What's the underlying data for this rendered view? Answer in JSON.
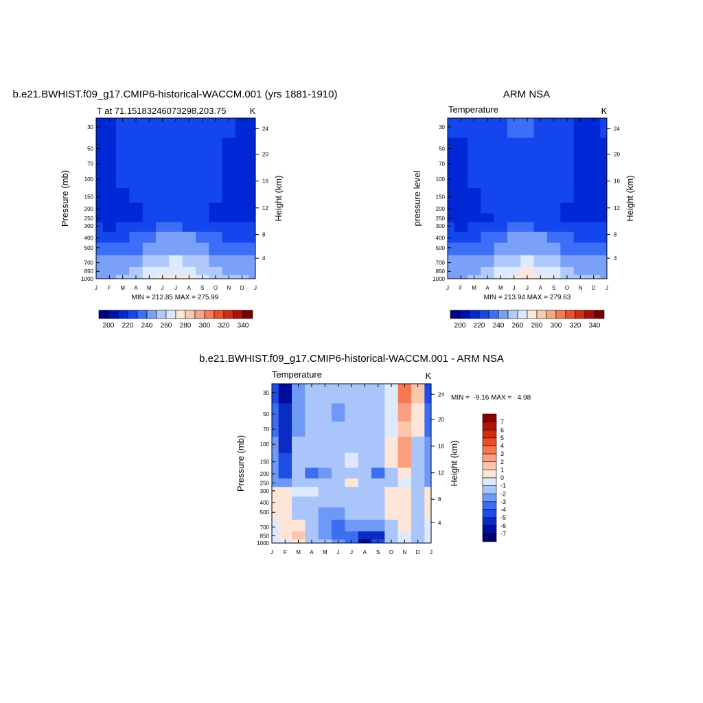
{
  "panels": [
    {
      "title": "b.e21.BWHIST.f09_g17.CMIP6-historical-WACCM.001 (yrs 1881-1910)",
      "left_label": "T at 71.15183246073298,203.75",
      "unit": "K",
      "ylabel": "Pressure (mb)",
      "y2label": "Height (km)",
      "stats": "MIN = 212.85 MAX = 275.99"
    },
    {
      "title": "ARM NSA",
      "left_label": "Temperature",
      "unit": "K",
      "ylabel": "pressure level",
      "y2label": "Height (km)",
      "stats": "MIN = 213.94 MAX = 279.63"
    },
    {
      "title": "b.e21.BWHIST.f09_g17.CMIP6-historical-WACCM.001 - ARM NSA",
      "left_label": "Temperature",
      "unit": "K",
      "ylabel": "Pressure (mb)",
      "y2label": "Height (km)",
      "stats": "MIN =  -9.16 MAX =   4.98"
    }
  ],
  "months": [
    "J",
    "F",
    "M",
    "A",
    "M",
    "J",
    "J",
    "A",
    "S",
    "O",
    "N",
    "D",
    "J"
  ],
  "pressure_ticks": [
    "30",
    "50",
    "70",
    "100",
    "150",
    "200",
    "250",
    "300",
    "400",
    "500",
    "700",
    "850",
    "1000"
  ],
  "height_ticks": [
    "24",
    "20",
    "16",
    "12",
    "8",
    "4"
  ],
  "temp_colorbar": {
    "labels": [
      "200",
      "220",
      "240",
      "260",
      "280",
      "300",
      "320",
      "340"
    ],
    "colors": [
      "#00008a",
      "#0010b0",
      "#0028d6",
      "#1446ee",
      "#3c6ef7",
      "#7aa0f9",
      "#b2cafb",
      "#dde9fd",
      "#fce8da",
      "#fbc9b0",
      "#f8a585",
      "#f47b58",
      "#e8502c",
      "#d22d12",
      "#a8100a",
      "#7a0000"
    ]
  },
  "diff_colorbar": {
    "labels": [
      "7",
      "6",
      "5",
      "4",
      "3",
      "2",
      "1",
      "0",
      "-1",
      "-2",
      "-3",
      "-4",
      "-5",
      "-6",
      "-7"
    ],
    "colors": [
      "#8a0000",
      "#b01208",
      "#d02a12",
      "#ec4a24",
      "#f77850",
      "#fa9f80",
      "#fbc6ae",
      "#fde6d7",
      "#dde9fd",
      "#a9c5fb",
      "#6e99f7",
      "#3c6ef2",
      "#1e4ce6",
      "#0a2cc4",
      "#000c9a",
      "#00006e"
    ]
  },
  "chart_data": [
    {
      "type": "heatmap",
      "title": "b.e21.BWHIST.f09_g17.CMIP6-historical-WACCM.001 (yrs 1881-1910)",
      "variable": "T at 71.15183246073298,203.75",
      "units": "K",
      "x": [
        "J",
        "F",
        "M",
        "A",
        "M",
        "J",
        "J",
        "A",
        "S",
        "O",
        "N",
        "D",
        "J"
      ],
      "y_pressure_mb": [
        30,
        50,
        70,
        100,
        150,
        200,
        250,
        300,
        400,
        500,
        700,
        850,
        1000
      ],
      "ylabel": "Pressure (mb)",
      "y2label": "Height (km)",
      "min": 212.85,
      "max": 275.99,
      "values_K": [
        [
          218,
          219,
          223,
          226,
          228,
          228,
          228,
          227,
          225,
          222,
          220,
          218,
          218
        ],
        [
          217,
          218,
          222,
          226,
          228,
          228,
          228,
          227,
          225,
          222,
          219,
          217,
          217
        ],
        [
          216,
          217,
          221,
          225,
          228,
          228,
          228,
          227,
          225,
          222,
          218,
          216,
          216
        ],
        [
          215,
          216,
          220,
          224,
          227,
          228,
          228,
          227,
          225,
          222,
          218,
          216,
          215
        ],
        [
          215,
          216,
          218,
          222,
          226,
          228,
          228,
          227,
          225,
          221,
          218,
          216,
          215
        ],
        [
          215,
          216,
          217,
          219,
          222,
          225,
          226,
          224,
          222,
          219,
          217,
          216,
          215
        ],
        [
          216,
          216,
          217,
          218,
          220,
          224,
          226,
          224,
          221,
          219,
          217,
          216,
          216
        ],
        [
          220,
          219,
          220,
          222,
          226,
          230,
          231,
          229,
          226,
          223,
          221,
          220,
          220
        ],
        [
          226,
          226,
          228,
          231,
          236,
          240,
          242,
          240,
          236,
          232,
          229,
          227,
          226
        ],
        [
          232,
          232,
          234,
          237,
          242,
          247,
          249,
          247,
          243,
          238,
          235,
          233,
          232
        ],
        [
          242,
          242,
          244,
          248,
          253,
          259,
          261,
          258,
          253,
          248,
          245,
          243,
          242
        ],
        [
          247,
          247,
          249,
          254,
          261,
          267,
          269,
          265,
          259,
          253,
          249,
          248,
          247
        ],
        [
          249,
          249,
          251,
          256,
          264,
          272,
          275,
          270,
          262,
          255,
          251,
          250,
          249
        ]
      ]
    },
    {
      "type": "heatmap",
      "title": "ARM NSA",
      "variable": "Temperature",
      "units": "K",
      "x": [
        "J",
        "F",
        "M",
        "A",
        "M",
        "J",
        "J",
        "A",
        "S",
        "O",
        "N",
        "D",
        "J"
      ],
      "y_pressure_mb": [
        30,
        50,
        70,
        100,
        150,
        200,
        250,
        300,
        400,
        500,
        700,
        850,
        1000
      ],
      "ylabel": "pressure level",
      "y2label": "Height (km)",
      "min": 213.94,
      "max": 279.63,
      "values_K": [
        [
          220,
          220,
          224,
          227,
          229,
          230,
          230,
          229,
          226,
          221,
          218,
          218,
          220
        ],
        [
          219,
          219,
          223,
          227,
          229,
          229,
          229,
          228,
          226,
          222,
          218,
          217,
          219
        ],
        [
          218,
          218,
          222,
          226,
          229,
          229,
          229,
          228,
          226,
          222,
          218,
          217,
          218
        ],
        [
          217,
          217,
          221,
          225,
          228,
          229,
          229,
          228,
          226,
          222,
          218,
          216,
          217
        ],
        [
          216,
          216,
          219,
          223,
          226,
          228,
          228,
          227,
          225,
          221,
          218,
          216,
          216
        ],
        [
          216,
          216,
          217,
          220,
          223,
          226,
          226,
          225,
          222,
          219,
          217,
          216,
          216
        ],
        [
          216,
          216,
          217,
          219,
          221,
          225,
          226,
          224,
          221,
          219,
          217,
          216,
          216
        ],
        [
          220,
          219,
          220,
          222,
          226,
          230,
          231,
          229,
          226,
          223,
          221,
          220,
          220
        ],
        [
          226,
          226,
          228,
          231,
          236,
          240,
          242,
          240,
          236,
          232,
          229,
          227,
          226
        ],
        [
          232,
          232,
          234,
          237,
          242,
          247,
          249,
          247,
          243,
          238,
          235,
          233,
          232
        ],
        [
          242,
          242,
          244,
          248,
          253,
          259,
          261,
          258,
          253,
          248,
          245,
          243,
          242
        ],
        [
          247,
          247,
          249,
          254,
          261,
          267,
          270,
          266,
          260,
          254,
          249,
          248,
          247
        ],
        [
          249,
          249,
          251,
          256,
          264,
          273,
          278,
          272,
          263,
          255,
          251,
          250,
          249
        ]
      ]
    },
    {
      "type": "heatmap",
      "title": "b.e21.BWHIST.f09_g17.CMIP6-historical-WACCM.001 - ARM NSA",
      "variable": "Temperature",
      "units": "K",
      "x": [
        "J",
        "F",
        "M",
        "A",
        "M",
        "J",
        "J",
        "A",
        "S",
        "O",
        "N",
        "D",
        "J"
      ],
      "y_pressure_mb": [
        30,
        50,
        70,
        100,
        150,
        200,
        250,
        300,
        400,
        500,
        700,
        850,
        1000
      ],
      "ylabel": "Pressure (mb)",
      "y2label": "Height (km)",
      "min": -9.16,
      "max": 4.98,
      "values_K": [
        [
          -4,
          -6,
          -2,
          -1,
          -1,
          -1,
          -1,
          -1,
          -1,
          0,
          4,
          2,
          -4
        ],
        [
          -3,
          -5,
          -2,
          -1,
          -1,
          -2,
          -1,
          -1,
          -1,
          0,
          3,
          1,
          -3
        ],
        [
          -3,
          -5,
          -2,
          -1,
          -1,
          -1,
          -1,
          -1,
          -1,
          0,
          2,
          1,
          -3
        ],
        [
          -2,
          -5,
          -1,
          -1,
          -1,
          -1,
          -1,
          -1,
          -1,
          1,
          3,
          -1,
          -2
        ],
        [
          -2,
          -4,
          -1,
          -1,
          -1,
          -1,
          0,
          -1,
          -1,
          1,
          3,
          -1,
          -2
        ],
        [
          -2,
          -4,
          -1,
          -3,
          -2,
          -1,
          -1,
          -1,
          -3,
          -1,
          1,
          -1,
          -2
        ],
        [
          -2,
          -2,
          -1,
          -1,
          -1,
          -1,
          1,
          -1,
          -1,
          -1,
          0,
          -1,
          -2
        ],
        [
          1,
          1,
          0,
          0,
          -1,
          -1,
          -1,
          -1,
          -1,
          1,
          1,
          -1,
          1
        ],
        [
          1,
          1,
          -1,
          -1,
          -1,
          -1,
          -1,
          -1,
          -1,
          1,
          1,
          -1,
          1
        ],
        [
          1,
          1,
          -1,
          -1,
          -2,
          -2,
          -1,
          -1,
          -1,
          1,
          1,
          -1,
          1
        ],
        [
          0,
          1,
          1,
          -1,
          -2,
          -3,
          -2,
          -2,
          -2,
          -1,
          1,
          -1,
          0
        ],
        [
          0,
          1,
          2,
          -1,
          -2,
          -3,
          -3,
          -5,
          -5,
          -1,
          0,
          -1,
          0
        ],
        [
          0,
          0,
          1,
          -1,
          -1,
          -2,
          -3,
          -6,
          -4,
          -1,
          0,
          -1,
          0
        ]
      ]
    }
  ]
}
